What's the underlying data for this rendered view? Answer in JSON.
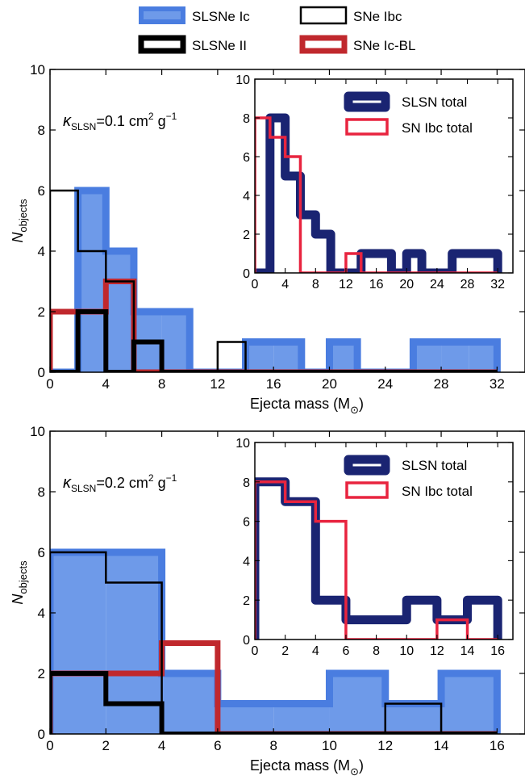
{
  "legend": {
    "entries": [
      {
        "key": "slsne_ic",
        "label": "SLSNe Ic",
        "color": "#5b8ee6",
        "edge": "#4a7de0",
        "style": "filled"
      },
      {
        "key": "slsne_ii",
        "label": "SLSNe II",
        "color": "#000000",
        "style": "thick-outline"
      },
      {
        "key": "sne_ibc",
        "label": "SNe Ibc",
        "color": "#000000",
        "style": "thin-outline"
      },
      {
        "key": "sne_icbl",
        "label": "SNe Ic-BL",
        "color": "#c0282d",
        "style": "thick-outline"
      }
    ]
  },
  "colors": {
    "slsn_fill": "#6e9ae9",
    "slsn_edge": "#4a7de0",
    "ii": "#000000",
    "ibc": "#000000",
    "icbl": "#c0282d",
    "slsn_total": "#1a2472",
    "sn_total": "#e8243f"
  },
  "chart_data": [
    {
      "type": "bar",
      "panel": "top",
      "annotation": {
        "kappa": "κ",
        "sub": "SLSN",
        "value": "=0.1 cm",
        "sup1": "2",
        "g": " g",
        "sup2": "−1"
      },
      "xlabel": "Ejecta mass (M",
      "xlabel_sun": "⊙",
      "ylabel": "N",
      "ylabel_sub": "objects",
      "xlim": [
        0,
        34
      ],
      "ylim": [
        0,
        10
      ],
      "xticks": [
        0,
        4,
        8,
        12,
        16,
        20,
        24,
        28,
        32
      ],
      "yticks": [
        0,
        2,
        4,
        6,
        8,
        10
      ],
      "bin_edges": [
        0,
        2,
        4,
        6,
        8,
        10,
        12,
        14,
        16,
        18,
        20,
        22,
        24,
        26,
        28,
        30,
        32
      ],
      "series": [
        {
          "name": "SLSNe Ic",
          "key": "slsne_ic",
          "values": [
            0,
            6,
            4,
            2,
            2,
            0,
            0,
            1,
            1,
            0,
            1,
            0,
            0,
            1,
            1,
            1
          ]
        },
        {
          "name": "SLSNe II",
          "key": "slsne_ii",
          "values": [
            0,
            2,
            0,
            1,
            0,
            0,
            0,
            0,
            0,
            0,
            0,
            0,
            0,
            0,
            0,
            0
          ]
        },
        {
          "name": "SNe Ibc",
          "key": "sne_ibc",
          "values": [
            6,
            4,
            3,
            0,
            0,
            0,
            1,
            0,
            0,
            0,
            0,
            0,
            0,
            0,
            0,
            0
          ]
        },
        {
          "name": "SNe Ic-BL",
          "key": "sne_icbl",
          "values": [
            2,
            2,
            3,
            0,
            0,
            0,
            0,
            0,
            0,
            0,
            0,
            0,
            0,
            0,
            0,
            0
          ]
        }
      ],
      "inset": {
        "xlim": [
          0,
          34
        ],
        "ylim": [
          0,
          10
        ],
        "xticks": [
          0,
          4,
          8,
          12,
          16,
          20,
          24,
          28,
          32
        ],
        "yticks": [
          0,
          2,
          4,
          6,
          8,
          10
        ],
        "bin_edges": [
          0,
          2,
          4,
          6,
          8,
          10,
          12,
          14,
          16,
          18,
          20,
          22,
          24,
          26,
          28,
          30,
          32
        ],
        "series": [
          {
            "name": "SLSN total",
            "key": "slsn_total",
            "values": [
              0,
              8,
              5,
              3,
              2,
              0,
              0,
              1,
              1,
              0,
              1,
              0,
              0,
              1,
              1,
              1
            ]
          },
          {
            "name": "SN Ibc total",
            "key": "sn_total",
            "values": [
              8,
              7,
              6,
              0,
              0,
              0,
              1,
              0,
              0,
              0,
              0,
              0,
              0,
              0,
              0,
              0
            ]
          }
        ]
      }
    },
    {
      "type": "bar",
      "panel": "bottom",
      "annotation": {
        "kappa": "κ",
        "sub": "SLSN",
        "value": "=0.2 cm",
        "sup1": "2",
        "g": " g",
        "sup2": "−1"
      },
      "xlabel": "Ejecta mass (M",
      "xlabel_sun": "⊙",
      "ylabel": "N",
      "ylabel_sub": "objects",
      "xlim": [
        0,
        17
      ],
      "ylim": [
        0,
        10
      ],
      "xticks": [
        0,
        2,
        4,
        6,
        8,
        10,
        12,
        14,
        16
      ],
      "yticks": [
        0,
        2,
        4,
        6,
        8,
        10
      ],
      "bin_edges": [
        0,
        2,
        4,
        6,
        8,
        10,
        12,
        14,
        16
      ],
      "series": [
        {
          "name": "SLSNe Ic",
          "key": "slsne_ic",
          "values": [
            6,
            6,
            2,
            1,
            1,
            2,
            1,
            2
          ]
        },
        {
          "name": "SLSNe II",
          "key": "slsne_ii",
          "values": [
            2,
            1,
            0,
            0,
            0,
            0,
            0,
            0
          ]
        },
        {
          "name": "SNe Ibc",
          "key": "sne_ibc",
          "values": [
            6,
            5,
            0,
            0,
            0,
            0,
            1,
            0
          ]
        },
        {
          "name": "SNe Ic-BL",
          "key": "sne_icbl",
          "values": [
            2,
            2,
            3,
            0,
            0,
            0,
            0,
            0
          ]
        }
      ],
      "inset": {
        "xlim": [
          0,
          17
        ],
        "ylim": [
          0,
          10
        ],
        "xticks": [
          0,
          2,
          4,
          6,
          8,
          10,
          12,
          14,
          16
        ],
        "yticks": [
          0,
          2,
          4,
          6,
          8,
          10
        ],
        "bin_edges": [
          0,
          2,
          4,
          6,
          8,
          10,
          12,
          14,
          16
        ],
        "series": [
          {
            "name": "SLSN total",
            "key": "slsn_total",
            "values": [
              8,
              7,
              2,
              1,
              1,
              2,
              1,
              2
            ]
          },
          {
            "name": "SN Ibc total",
            "key": "sn_total",
            "values": [
              8,
              7,
              6,
              0,
              0,
              0,
              1,
              0
            ]
          }
        ]
      }
    }
  ]
}
